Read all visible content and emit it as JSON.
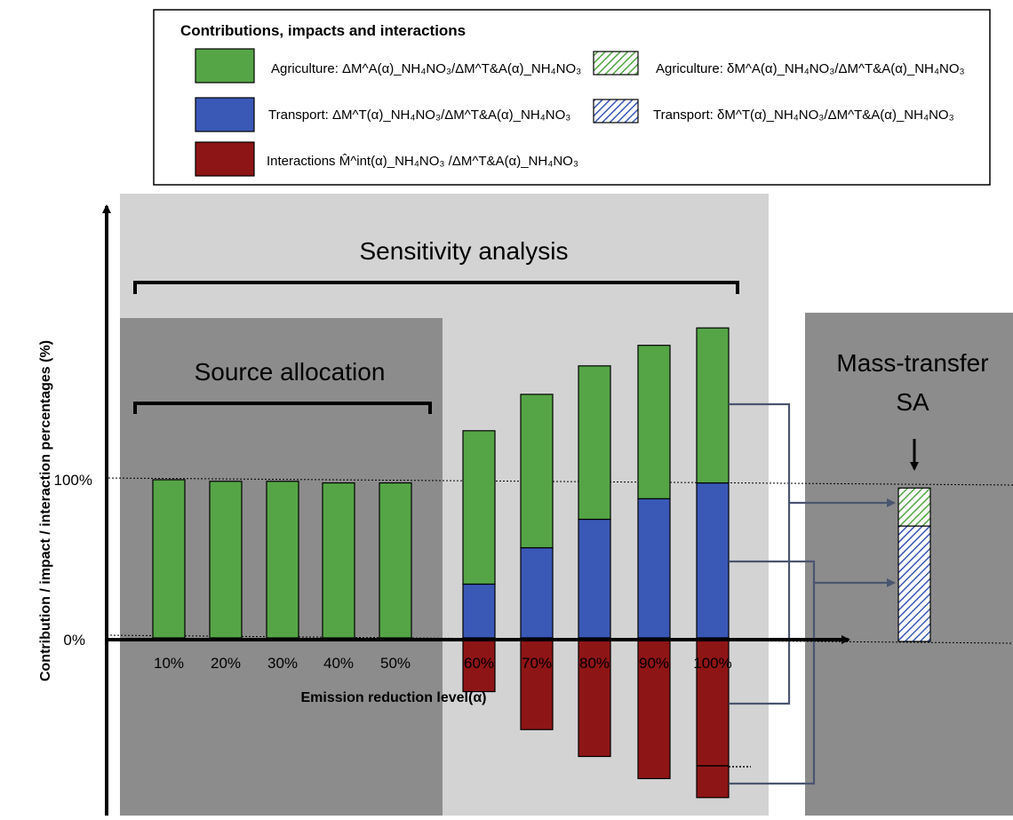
{
  "legend": {
    "title": "Contributions, impacts and interactions",
    "items": [
      {
        "key": "agri",
        "text": "Agriculture: ΔM^A(α)_NH₄NO₃/ΔM^T&A(α)_NH₄NO₃",
        "color": "#55a546",
        "pattern": "solid"
      },
      {
        "key": "trans",
        "text": "Transport: ΔM^T(α)_NH₄NO₃/ΔM^T&A(α)_NH₄NO₃",
        "color": "#3a58b6",
        "pattern": "solid"
      },
      {
        "key": "int",
        "text": "Interactions M̂^int(α)_NH₄NO₃ /ΔM^T&A(α)_NH₄NO₃",
        "color": "#8e1515",
        "pattern": "solid"
      },
      {
        "key": "agri_mt",
        "text": "Agriculture: δM^A(α)_NH₄NO₃/ΔM^T&A(α)_NH₄NO₃",
        "color": "#55a546",
        "pattern": "hatched"
      },
      {
        "key": "trans_mt",
        "text": "Transport: δM^T(α)_NH₄NO₃/ΔM^T&A(α)_NH₄NO₃",
        "color": "#3a58b6",
        "pattern": "hatched"
      }
    ]
  },
  "regions": {
    "sensitivity": "Sensitivity analysis",
    "source": "Source allocation",
    "mass_line1": "Mass-transfer",
    "mass_line2": "SA"
  },
  "colors": {
    "agri": "#55a546",
    "trans": "#3a58b6",
    "int": "#8e1515",
    "sens_bg": "#d3d3d3",
    "source_bg": "#8c8c8c",
    "mass_bg": "#8c8c8c",
    "connector": "#4a5570"
  },
  "chart_data": {
    "type": "bar",
    "stacked": true,
    "categories": [
      "10%",
      "20%",
      "30%",
      "40%",
      "50%",
      "60%",
      "70%",
      "80%",
      "90%",
      "100%"
    ],
    "series": [
      {
        "key": "trans",
        "values": [
          0,
          0,
          0,
          0,
          0,
          34,
          57,
          75,
          88,
          98
        ]
      },
      {
        "key": "agri",
        "values": [
          100,
          99,
          99,
          98,
          98,
          97,
          97,
          97,
          97,
          98
        ]
      },
      {
        "key": "int",
        "values": [
          0,
          0,
          0,
          0,
          0,
          -34,
          -58,
          -75,
          -89,
          -101
        ]
      }
    ],
    "mass_transfer": {
      "trans": 73,
      "agri": 24
    },
    "ylabel": "Contribution / impact / interaction percentages (%)",
    "xlabel": "Emission reduction level(α)",
    "y_ticks": [
      "0%",
      "100%"
    ],
    "ylim": [
      -110,
      200
    ]
  }
}
